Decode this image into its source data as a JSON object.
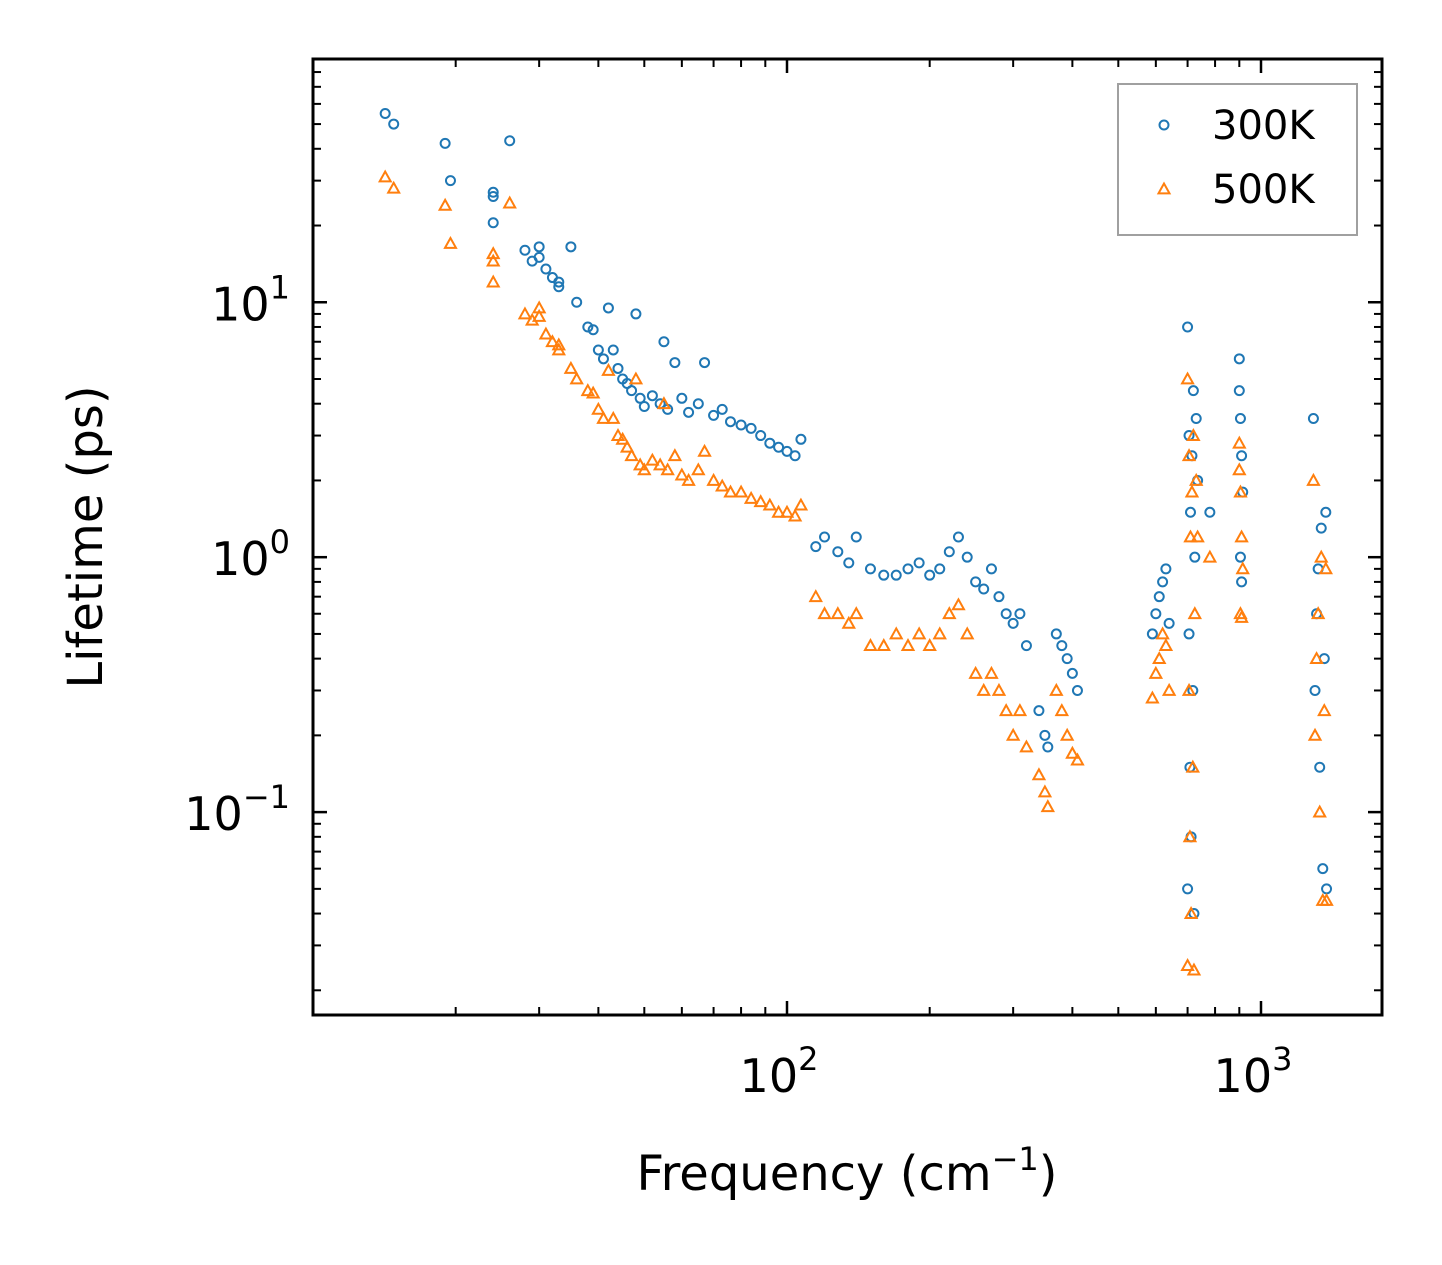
{
  "chart_data": {
    "type": "scatter",
    "title": "",
    "xlabel": "Frequency (cm",
    "xlabel_sup": "−1",
    "xlabel_close": ")",
    "ylabel": "Lifetime (ps)",
    "xscale": "log",
    "yscale": "log",
    "xlim": [
      10,
      1800
    ],
    "ylim": [
      0.016,
      90
    ],
    "x_ticks": [
      {
        "value": 100,
        "base": "10",
        "exp": "2"
      },
      {
        "value": 1000,
        "base": "10",
        "exp": "3"
      }
    ],
    "y_ticks": [
      {
        "value": 10,
        "base": "10",
        "exp": "1"
      },
      {
        "value": 1,
        "base": "10",
        "exp": "0"
      },
      {
        "value": 0.1,
        "base": "10",
        "exp": "−1"
      }
    ],
    "legend_position": "top-right",
    "series": [
      {
        "name": "300K",
        "marker": "circle",
        "color": "#1f77b4",
        "points": [
          [
            14.2,
            55
          ],
          [
            14.8,
            50
          ],
          [
            19,
            42
          ],
          [
            19.5,
            30
          ],
          [
            24,
            27
          ],
          [
            24,
            26
          ],
          [
            24,
            20.5
          ],
          [
            26,
            43
          ],
          [
            28,
            16
          ],
          [
            29,
            14.5
          ],
          [
            30,
            16.5
          ],
          [
            30,
            15
          ],
          [
            31,
            13.5
          ],
          [
            32,
            12.5
          ],
          [
            33,
            12
          ],
          [
            33,
            11.5
          ],
          [
            35,
            16.5
          ],
          [
            36,
            10
          ],
          [
            38,
            8
          ],
          [
            39,
            7.8
          ],
          [
            40,
            6.5
          ],
          [
            41,
            6
          ],
          [
            42,
            9.5
          ],
          [
            43,
            6.5
          ],
          [
            44,
            5.5
          ],
          [
            45,
            5
          ],
          [
            46,
            4.8
          ],
          [
            47,
            4.5
          ],
          [
            48,
            9
          ],
          [
            49,
            4.2
          ],
          [
            50,
            3.9
          ],
          [
            52,
            4.3
          ],
          [
            54,
            4.0
          ],
          [
            55,
            7
          ],
          [
            56,
            3.8
          ],
          [
            58,
            5.8
          ],
          [
            60,
            4.2
          ],
          [
            62,
            3.7
          ],
          [
            65,
            4.0
          ],
          [
            67,
            5.8
          ],
          [
            70,
            3.6
          ],
          [
            73,
            3.8
          ],
          [
            76,
            3.4
          ],
          [
            80,
            3.3
          ],
          [
            84,
            3.2
          ],
          [
            88,
            3.0
          ],
          [
            92,
            2.8
          ],
          [
            96,
            2.7
          ],
          [
            100,
            2.6
          ],
          [
            104,
            2.5
          ],
          [
            107,
            2.9
          ],
          [
            115,
            1.1
          ],
          [
            120,
            1.2
          ],
          [
            128,
            1.05
          ],
          [
            135,
            0.95
          ],
          [
            140,
            1.2
          ],
          [
            150,
            0.9
          ],
          [
            160,
            0.85
          ],
          [
            170,
            0.85
          ],
          [
            180,
            0.9
          ],
          [
            190,
            0.95
          ],
          [
            200,
            0.85
          ],
          [
            210,
            0.9
          ],
          [
            220,
            1.05
          ],
          [
            230,
            1.2
          ],
          [
            240,
            1.0
          ],
          [
            250,
            0.8
          ],
          [
            260,
            0.75
          ],
          [
            270,
            0.9
          ],
          [
            280,
            0.7
          ],
          [
            290,
            0.6
          ],
          [
            300,
            0.55
          ],
          [
            310,
            0.6
          ],
          [
            320,
            0.45
          ],
          [
            340,
            0.25
          ],
          [
            350,
            0.2
          ],
          [
            355,
            0.18
          ],
          [
            370,
            0.5
          ],
          [
            380,
            0.45
          ],
          [
            390,
            0.4
          ],
          [
            400,
            0.35
          ],
          [
            410,
            0.3
          ],
          [
            590,
            0.5
          ],
          [
            600,
            0.6
          ],
          [
            610,
            0.7
          ],
          [
            620,
            0.8
          ],
          [
            630,
            0.9
          ],
          [
            640,
            0.55
          ],
          [
            700,
            8.0
          ],
          [
            700,
            0.05
          ],
          [
            705,
            3.0
          ],
          [
            705,
            0.5
          ],
          [
            708,
            0.15
          ],
          [
            710,
            1.5
          ],
          [
            712,
            0.08
          ],
          [
            715,
            2.5
          ],
          [
            718,
            0.3
          ],
          [
            720,
            4.5
          ],
          [
            722,
            0.04
          ],
          [
            725,
            1.0
          ],
          [
            730,
            3.5
          ],
          [
            735,
            2.0
          ],
          [
            780,
            1.5
          ],
          [
            900,
            6.0
          ],
          [
            900,
            4.5
          ],
          [
            905,
            3.5
          ],
          [
            905,
            1.0
          ],
          [
            910,
            2.5
          ],
          [
            910,
            0.8
          ],
          [
            915,
            1.8
          ],
          [
            1290,
            3.5
          ],
          [
            1300,
            0.3
          ],
          [
            1310,
            0.6
          ],
          [
            1320,
            0.9
          ],
          [
            1330,
            0.15
          ],
          [
            1340,
            1.3
          ],
          [
            1350,
            0.06
          ],
          [
            1360,
            0.4
          ],
          [
            1370,
            1.5
          ],
          [
            1375,
            0.05
          ]
        ]
      },
      {
        "name": "500K",
        "marker": "triangle",
        "color": "#ff7f0e",
        "points": [
          [
            14.2,
            31
          ],
          [
            14.8,
            28
          ],
          [
            19,
            24
          ],
          [
            19.5,
            17
          ],
          [
            24,
            15.5
          ],
          [
            24,
            14.5
          ],
          [
            24,
            12
          ],
          [
            26,
            24.5
          ],
          [
            28,
            9
          ],
          [
            29,
            8.5
          ],
          [
            30,
            9.5
          ],
          [
            30,
            8.8
          ],
          [
            31,
            7.5
          ],
          [
            32,
            7.0
          ],
          [
            33,
            6.8
          ],
          [
            33,
            6.5
          ],
          [
            35,
            5.5
          ],
          [
            36,
            5.0
          ],
          [
            38,
            4.5
          ],
          [
            39,
            4.4
          ],
          [
            40,
            3.8
          ],
          [
            41,
            3.5
          ],
          [
            42,
            5.4
          ],
          [
            43,
            3.5
          ],
          [
            44,
            3.0
          ],
          [
            45,
            2.9
          ],
          [
            46,
            2.7
          ],
          [
            47,
            2.5
          ],
          [
            48,
            5.0
          ],
          [
            49,
            2.3
          ],
          [
            50,
            2.2
          ],
          [
            52,
            2.4
          ],
          [
            54,
            2.3
          ],
          [
            55,
            4.0
          ],
          [
            56,
            2.2
          ],
          [
            58,
            2.5
          ],
          [
            60,
            2.1
          ],
          [
            62,
            2.0
          ],
          [
            65,
            2.2
          ],
          [
            67,
            2.6
          ],
          [
            70,
            2.0
          ],
          [
            73,
            1.9
          ],
          [
            76,
            1.8
          ],
          [
            80,
            1.8
          ],
          [
            84,
            1.7
          ],
          [
            88,
            1.65
          ],
          [
            92,
            1.6
          ],
          [
            96,
            1.5
          ],
          [
            100,
            1.5
          ],
          [
            104,
            1.45
          ],
          [
            107,
            1.6
          ],
          [
            115,
            0.7
          ],
          [
            120,
            0.6
          ],
          [
            128,
            0.6
          ],
          [
            135,
            0.55
          ],
          [
            140,
            0.6
          ],
          [
            150,
            0.45
          ],
          [
            160,
            0.45
          ],
          [
            170,
            0.5
          ],
          [
            180,
            0.45
          ],
          [
            190,
            0.5
          ],
          [
            200,
            0.45
          ],
          [
            210,
            0.5
          ],
          [
            220,
            0.6
          ],
          [
            230,
            0.65
          ],
          [
            240,
            0.5
          ],
          [
            250,
            0.35
          ],
          [
            260,
            0.3
          ],
          [
            270,
            0.35
          ],
          [
            280,
            0.3
          ],
          [
            290,
            0.25
          ],
          [
            300,
            0.2
          ],
          [
            310,
            0.25
          ],
          [
            320,
            0.18
          ],
          [
            340,
            0.14
          ],
          [
            350,
            0.12
          ],
          [
            355,
            0.105
          ],
          [
            370,
            0.3
          ],
          [
            380,
            0.25
          ],
          [
            390,
            0.2
          ],
          [
            400,
            0.17
          ],
          [
            410,
            0.16
          ],
          [
            590,
            0.28
          ],
          [
            600,
            0.35
          ],
          [
            610,
            0.4
          ],
          [
            620,
            0.5
          ],
          [
            630,
            0.45
          ],
          [
            640,
            0.3
          ],
          [
            700,
            5.0
          ],
          [
            700,
            0.025
          ],
          [
            705,
            2.5
          ],
          [
            705,
            0.3
          ],
          [
            708,
            0.08
          ],
          [
            710,
            1.2
          ],
          [
            712,
            0.04
          ],
          [
            715,
            1.8
          ],
          [
            718,
            0.15
          ],
          [
            720,
            3.0
          ],
          [
            722,
            0.024
          ],
          [
            725,
            0.6
          ],
          [
            730,
            2.0
          ],
          [
            735,
            1.2
          ],
          [
            780,
            1.0
          ],
          [
            900,
            2.8
          ],
          [
            900,
            2.2
          ],
          [
            905,
            1.8
          ],
          [
            905,
            0.6
          ],
          [
            910,
            1.2
          ],
          [
            910,
            0.58
          ],
          [
            915,
            0.9
          ],
          [
            1290,
            2.0
          ],
          [
            1300,
            0.2
          ],
          [
            1310,
            0.4
          ],
          [
            1320,
            0.6
          ],
          [
            1330,
            0.1
          ],
          [
            1340,
            1.0
          ],
          [
            1350,
            0.045
          ],
          [
            1360,
            0.25
          ],
          [
            1370,
            0.9
          ],
          [
            1375,
            0.045
          ]
        ]
      }
    ]
  }
}
